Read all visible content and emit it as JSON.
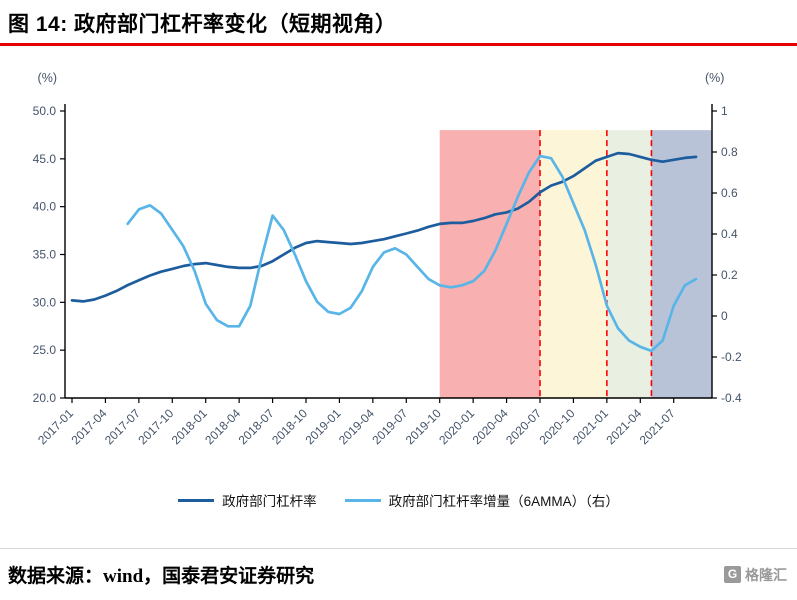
{
  "header": {
    "title": "图 14:  政府部门杠杆率变化（短期视角）"
  },
  "footer": {
    "source": "数据来源：wind，国泰君安证券研究",
    "logo_mark": "G",
    "logo_text": "格隆汇"
  },
  "chart_data": {
    "type": "line",
    "title": "政府部门杠杆率变化（短期视角）",
    "left_axis_label": "(%)",
    "right_axis_label": "(%)",
    "left_ylim": [
      20,
      50
    ],
    "right_ylim": [
      -0.4,
      1
    ],
    "left_ticks": [
      "50.0",
      "45.0",
      "40.0",
      "35.0",
      "30.0",
      "25.0",
      "20.0"
    ],
    "right_ticks": [
      "1",
      "0.8",
      "0.6",
      "0.4",
      "0.2",
      "0",
      "-0.2",
      "-0.4"
    ],
    "x_tick_labels": [
      "2017-01",
      "2017-04",
      "2017-07",
      "2017-10",
      "2018-01",
      "2018-04",
      "2018-07",
      "2018-10",
      "2019-01",
      "2019-04",
      "2019-07",
      "2019-10",
      "2020-01",
      "2020-04",
      "2020-07",
      "2020-10",
      "2021-01",
      "2021-04",
      "2021-07"
    ],
    "x_range": [
      "2017-01",
      "2021-09"
    ],
    "grid": false,
    "legend_position": "bottom",
    "dashed_color": "#ff0000",
    "dashed_lines": [
      "2020-07",
      "2021-01",
      "2021-05"
    ],
    "regions": [
      {
        "from": "2019-10",
        "to": "2020-07",
        "color": "#f8b0b0"
      },
      {
        "from": "2020-07",
        "to": "2021-01",
        "color": "#fdf5d8"
      },
      {
        "from": "2021-01",
        "to": "2021-05",
        "color": "#e9f0e1"
      },
      {
        "from": "2021-05",
        "to": "2021-12",
        "color": "#b9c3d8"
      }
    ],
    "series": [
      {
        "name": "政府部门杠杆率",
        "axis": "left",
        "color": "#1d5d9e",
        "start": "2017-01",
        "values": [
          30.2,
          30.1,
          30.3,
          30.7,
          31.2,
          31.8,
          32.3,
          32.8,
          33.2,
          33.5,
          33.8,
          34.0,
          34.1,
          33.9,
          33.7,
          33.6,
          33.6,
          33.8,
          34.3,
          35.0,
          35.7,
          36.2,
          36.4,
          36.3,
          36.2,
          36.1,
          36.2,
          36.4,
          36.6,
          36.9,
          37.2,
          37.5,
          37.9,
          38.2,
          38.3,
          38.3,
          38.5,
          38.8,
          39.2,
          39.4,
          39.8,
          40.5,
          41.5,
          42.2,
          42.6,
          43.2,
          44.0,
          44.8,
          45.2,
          45.6,
          45.5,
          45.2,
          44.9,
          44.7,
          44.9,
          45.1,
          45.2
        ]
      },
      {
        "name": "政府部门杠杆率增量（6AMMA）（右）",
        "axis": "right",
        "color": "#59b5e8",
        "start": "2017-06",
        "values": [
          0.45,
          0.52,
          0.54,
          0.5,
          0.42,
          0.34,
          0.22,
          0.06,
          -0.02,
          -0.05,
          -0.05,
          0.05,
          0.28,
          0.49,
          0.42,
          0.3,
          0.17,
          0.07,
          0.02,
          0.01,
          0.04,
          0.12,
          0.24,
          0.31,
          0.33,
          0.3,
          0.24,
          0.18,
          0.15,
          0.14,
          0.15,
          0.17,
          0.22,
          0.32,
          0.45,
          0.58,
          0.7,
          0.78,
          0.77,
          0.68,
          0.55,
          0.42,
          0.25,
          0.05,
          -0.06,
          -0.12,
          -0.15,
          -0.17,
          -0.12,
          0.05,
          0.15,
          0.18
        ]
      }
    ]
  }
}
